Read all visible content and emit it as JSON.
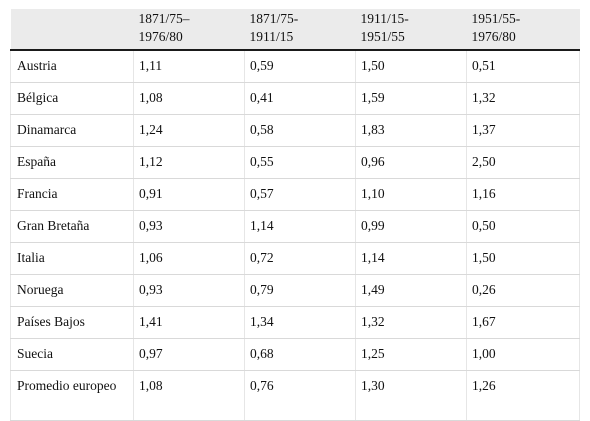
{
  "table": {
    "headers": [
      "",
      "1871/75–\n1976/80",
      "1871/75-\n1911/15",
      "1911/15-\n1951/55",
      "1951/55-\n1976/80"
    ],
    "header_lines": [
      [
        "",
        ""
      ],
      [
        "1871/75–",
        "1976/80"
      ],
      [
        "1871/75-",
        "1911/15"
      ],
      [
        "1911/15-",
        "1951/55"
      ],
      [
        "1951/55-",
        "1976/80"
      ]
    ],
    "rows": [
      [
        "Austria",
        "1,11",
        "0,59",
        "1,50",
        "0,51"
      ],
      [
        "Bélgica",
        "1,08",
        "0,41",
        "1,59",
        "1,32"
      ],
      [
        "Dinamarca",
        "1,24",
        "0,58",
        "1,83",
        "1,37"
      ],
      [
        "España",
        "1,12",
        "0,55",
        "0,96",
        "2,50"
      ],
      [
        "Francia",
        "0,91",
        "0,57",
        "1,10",
        "1,16"
      ],
      [
        "Gran Bretaña",
        "0,93",
        "1,14",
        "0,99",
        "0,50"
      ],
      [
        "Italia",
        "1,06",
        "0,72",
        "1,14",
        "1,50"
      ],
      [
        "Noruega",
        "0,93",
        "0,79",
        "1,49",
        "0,26"
      ],
      [
        "Países Bajos",
        "1,41",
        "1,34",
        "1,32",
        "1,67"
      ],
      [
        "Suecia",
        "0,97",
        "0,68",
        "1,25",
        "1,00"
      ],
      [
        "Promedio europeo",
        "1,08",
        "0,76",
        "1,30",
        "1,26"
      ]
    ]
  }
}
